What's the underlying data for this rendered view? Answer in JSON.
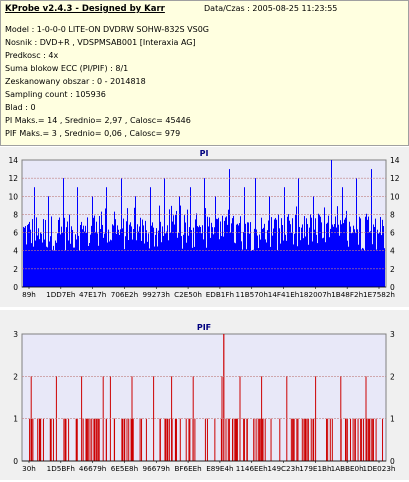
{
  "header": {
    "title": "KProbe v2.4.3 - Designed by Karr",
    "date": "Data/Czas : 2005-08-25 11:23:55"
  },
  "info_lines": [
    "Model : 1-0-0-0 LITE-ON DVDRW SOHW-832S  VS0G",
    "Nosnik : DVD+R , VDSPMSAB001 [Interaxia AG]",
    "Predkosc : 4x",
    "Suma blokow ECC (PI/PIF) : 8/1",
    "Zeskanowany obszar : 0 - 2014818",
    "Sampling count : 105936",
    "Blad : 0",
    "PI Maks.= 14 , Srednio= 2,97 , Calosc= 45446",
    "PIF Maks.= 3 , Srednio= 0,06 , Calosc= 979"
  ],
  "chart_data": [
    {
      "type": "bar",
      "title": "PI",
      "ylim": [
        0,
        14
      ],
      "yticks": [
        0,
        2,
        4,
        6,
        8,
        10,
        12,
        14
      ],
      "xticks": [
        "89h",
        "1DD7Eh",
        "47E17h",
        "706E2h",
        "99273h",
        "C2E50h",
        "EDB1Fh",
        "11B570h",
        "14F41Eh",
        "182007h",
        "1B48F2h",
        "1E7582h"
      ],
      "xlim": [
        0,
        2014818
      ],
      "grid": true,
      "series": [
        {
          "color": "#0000ff",
          "max": 14,
          "average": 2.97,
          "total": 45446,
          "typical_range": [
            4,
            8
          ],
          "peaks": [
            [
              0.03,
              11
            ],
            [
              0.07,
              10
            ],
            [
              0.11,
              12
            ],
            [
              0.15,
              11
            ],
            [
              0.19,
              10
            ],
            [
              0.23,
              11
            ],
            [
              0.27,
              12
            ],
            [
              0.31,
              10
            ],
            [
              0.35,
              11
            ],
            [
              0.39,
              12
            ],
            [
              0.43,
              10
            ],
            [
              0.46,
              11
            ],
            [
              0.5,
              12
            ],
            [
              0.53,
              10
            ],
            [
              0.57,
              13
            ],
            [
              0.61,
              11
            ],
            [
              0.64,
              12
            ],
            [
              0.68,
              10
            ],
            [
              0.72,
              11
            ],
            [
              0.76,
              12
            ],
            [
              0.8,
              10
            ],
            [
              0.85,
              14
            ],
            [
              0.88,
              11
            ],
            [
              0.92,
              12
            ],
            [
              0.96,
              13
            ]
          ]
        }
      ]
    },
    {
      "type": "bar",
      "title": "PIF",
      "ylim": [
        0,
        3
      ],
      "yticks": [
        0,
        1,
        2,
        3
      ],
      "xticks": [
        "30h",
        "1D5BFh",
        "46679h",
        "6E5E8h",
        "96679h",
        "BF6EEh",
        "E89E4h",
        "1146EEh",
        "149C23h",
        "179E1Bh",
        "1ABBE0h",
        "1DE023h"
      ],
      "xlim": [
        0,
        2014818
      ],
      "grid": true,
      "series": [
        {
          "color": "#cc0000",
          "max": 3,
          "average": 0.06,
          "total": 979,
          "level2": [
            0.02,
            0.09,
            0.16,
            0.22,
            0.24,
            0.3,
            0.36,
            0.41,
            0.47,
            0.55,
            0.6,
            0.66,
            0.73,
            0.81,
            0.88,
            0.95
          ],
          "level3": [
            0.555
          ],
          "level1_count": 140
        }
      ]
    }
  ]
}
